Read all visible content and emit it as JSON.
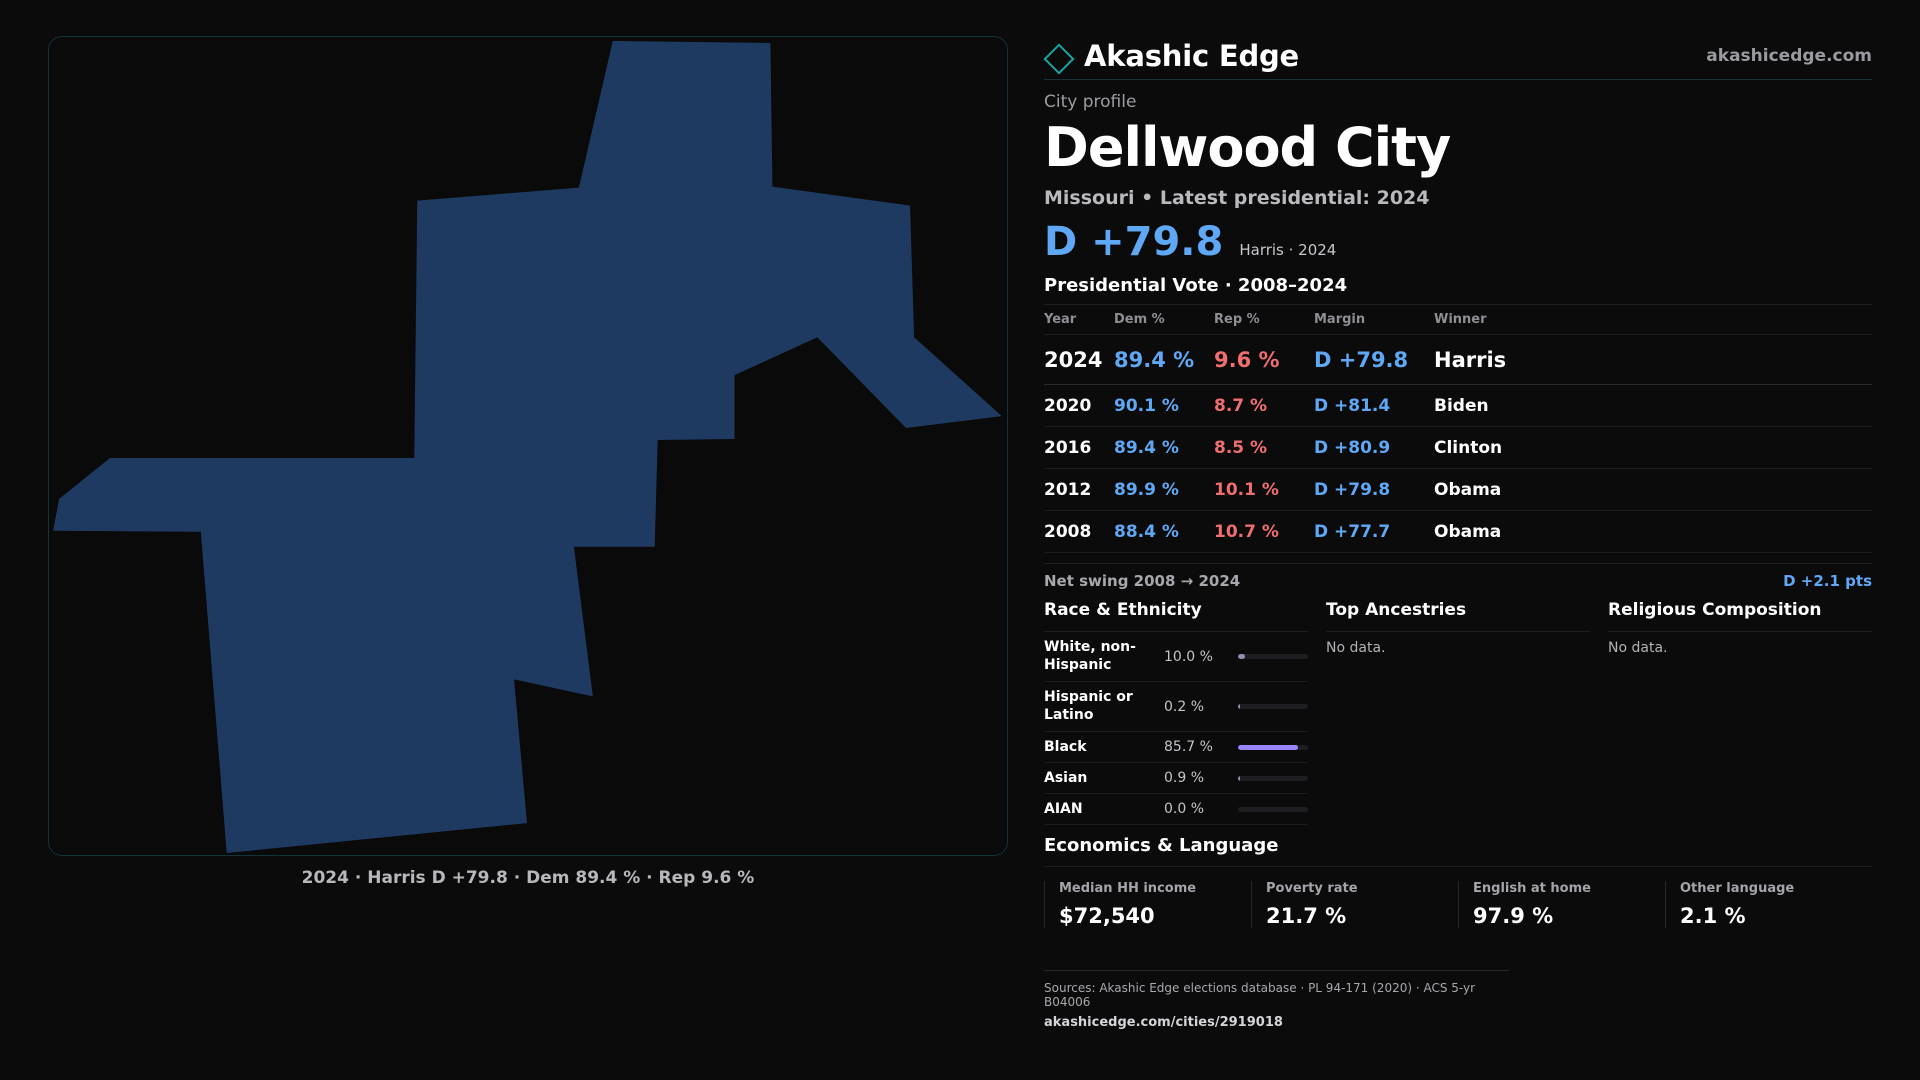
{
  "brand": {
    "name": "Akashic Edge",
    "url": "akashicedge.com",
    "colors": {
      "accent": "#1aa3a3",
      "dem": "#5fa8f5",
      "rep": "#f06e6e",
      "map_fill": "#1f3a61",
      "bar": "#9b84ff"
    }
  },
  "header": {
    "eyebrow": "City profile",
    "title": "Dellwood City",
    "subline": "Missouri • Latest presidential: 2024",
    "margin": "D +79.8",
    "margin_note": "Harris · 2024"
  },
  "map": {
    "caption": "2024 · Harris D +79.8 · Dem 89.4 % · Rep 9.6 %"
  },
  "votes": {
    "title": "Presidential Vote · 2008–2024",
    "headers": {
      "year": "Year",
      "dem": "Dem %",
      "rep": "Rep %",
      "margin": "Margin",
      "winner": "Winner"
    },
    "rows": [
      {
        "year": "2024",
        "dem": "89.4 %",
        "rep": "9.6 %",
        "margin": "D +79.8",
        "winner": "Harris"
      },
      {
        "year": "2020",
        "dem": "90.1 %",
        "rep": "8.7 %",
        "margin": "D +81.4",
        "winner": "Biden"
      },
      {
        "year": "2016",
        "dem": "89.4 %",
        "rep": "8.5 %",
        "margin": "D +80.9",
        "winner": "Clinton"
      },
      {
        "year": "2012",
        "dem": "89.9 %",
        "rep": "10.1 %",
        "margin": "D +79.8",
        "winner": "Obama"
      },
      {
        "year": "2008",
        "dem": "88.4 %",
        "rep": "10.7 %",
        "margin": "D +77.7",
        "winner": "Obama"
      }
    ],
    "swing_label": "Net swing 2008 → 2024",
    "swing_value": "D +2.1 pts"
  },
  "race": {
    "title": "Race & Ethnicity",
    "rows": [
      {
        "label": "White, non-Hispanic",
        "pct": "10.0 %",
        "value": 10.0
      },
      {
        "label": "Hispanic or Latino",
        "pct": "0.2 %",
        "value": 0.2
      },
      {
        "label": "Black",
        "pct": "85.7 %",
        "value": 85.7
      },
      {
        "label": "Asian",
        "pct": "0.9 %",
        "value": 0.9
      },
      {
        "label": "AIAN",
        "pct": "0.0 %",
        "value": 0.0
      }
    ]
  },
  "ancestries": {
    "title": "Top Ancestries",
    "empty": "No data."
  },
  "religion": {
    "title": "Religious Composition",
    "empty": "No data."
  },
  "economics": {
    "title": "Economics & Language",
    "cards": [
      {
        "label": "Median HH income",
        "value": "$72,540"
      },
      {
        "label": "Poverty rate",
        "value": "21.7 %"
      },
      {
        "label": "English at home",
        "value": "97.9 %"
      },
      {
        "label": "Other language",
        "value": "2.1 %"
      }
    ]
  },
  "footer": {
    "sources": "Sources: Akashic Edge elections database · PL 94-171 (2020) · ACS 5-yr B04006",
    "url": "akashicedge.com/cities/2919018"
  }
}
